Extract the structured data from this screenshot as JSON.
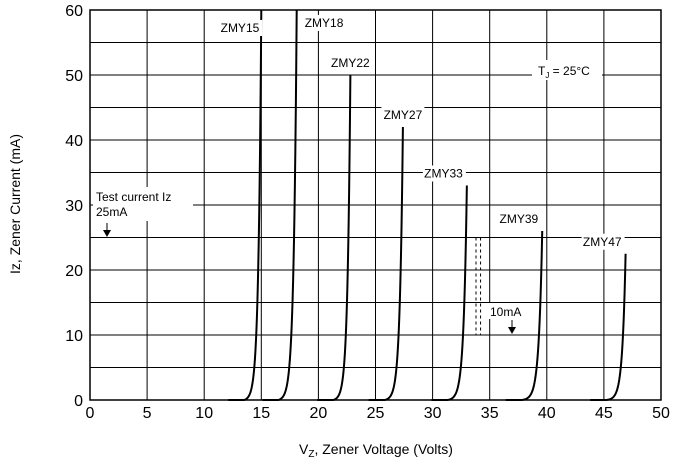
{
  "chart_data": {
    "type": "line",
    "title": "",
    "xlabel_main": "V",
    "xlabel_sub": "Z",
    "xlabel_rest": ", Zener Voltage (Volts)",
    "ylabel": "Iz, Zener Current (mA)",
    "xlim": [
      0,
      50
    ],
    "ylim": [
      0,
      60
    ],
    "xticks": [
      0,
      5,
      10,
      15,
      20,
      25,
      30,
      35,
      40,
      45,
      50
    ],
    "yticks": [
      0,
      10,
      20,
      30,
      40,
      50,
      60
    ],
    "x_gridlines": [
      0,
      5,
      10,
      15,
      20,
      25,
      30,
      35,
      40,
      45,
      50
    ],
    "y_gridlines": [
      0,
      5,
      10,
      15,
      20,
      25,
      30,
      35,
      40,
      45,
      50,
      55,
      60
    ],
    "grid": true,
    "series": [
      {
        "name": "ZMY15",
        "knee_v": 13.5,
        "top_v": 15.0,
        "top_i": 60
      },
      {
        "name": "ZMY18",
        "knee_v": 16.5,
        "top_v": 18.1,
        "top_i": 60
      },
      {
        "name": "ZMY22",
        "knee_v": 21.3,
        "top_v": 22.8,
        "top_i": 50
      },
      {
        "name": "ZMY27",
        "knee_v": 25.8,
        "top_v": 27.4,
        "top_i": 42
      },
      {
        "name": "ZMY33",
        "knee_v": 31.3,
        "top_v": 33.0,
        "top_i": 33
      },
      {
        "name": "ZMY39",
        "knee_v": 37.8,
        "top_v": 39.6,
        "top_i": 26
      },
      {
        "name": "ZMY47",
        "knee_v": 45.2,
        "top_v": 46.9,
        "top_i": 22.5
      }
    ],
    "annotations": {
      "tj": "T",
      "tj_sub": "J",
      "tj_rest": " = 25°C",
      "test_current_line1": "Test current Iz",
      "test_current_line2": "25mA",
      "test_current_i": 25,
      "low_current": "10mA",
      "low_current_i": 10
    }
  }
}
